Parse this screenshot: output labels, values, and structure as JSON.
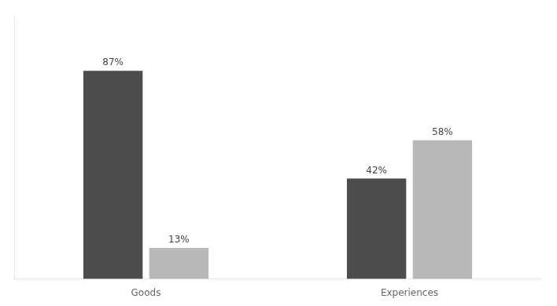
{
  "chart_data": {
    "type": "bar",
    "categories": [
      "Goods",
      "Experiences"
    ],
    "series": [
      {
        "color": "#4d4d4d",
        "values": [
          87,
          42
        ],
        "value_labels": [
          "87%",
          "42%"
        ]
      },
      {
        "color": "#b8b8b8",
        "values": [
          13,
          58
        ],
        "value_labels": [
          "13%",
          "58%"
        ]
      }
    ],
    "ylim": [
      0,
      110
    ],
    "grid": false,
    "data_labels": true,
    "tick_labels": "x"
  }
}
